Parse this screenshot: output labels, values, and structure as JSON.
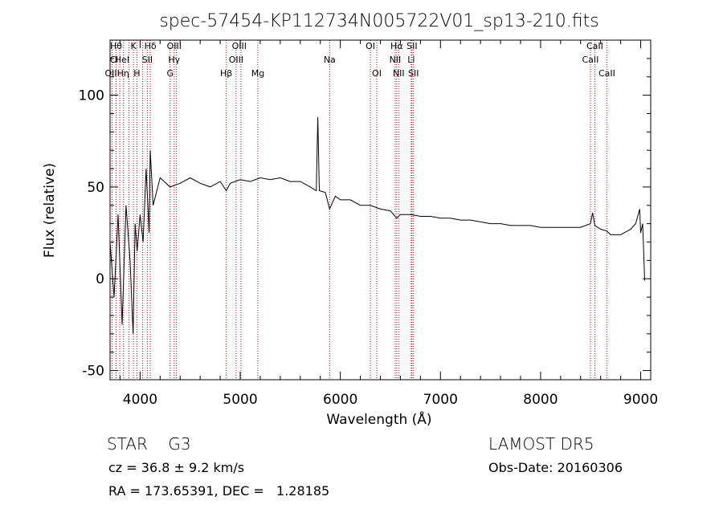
{
  "chart_data": {
    "type": "line",
    "title": "spec-57454-KP112734N005722V01_sp13-210.fits",
    "xlabel": "Wavelength (Å)",
    "ylabel": "Flux (relative)",
    "xlim": [
      3700,
      9100
    ],
    "ylim": [
      -55,
      130
    ],
    "xticks": [
      4000,
      5000,
      6000,
      7000,
      8000,
      9000
    ],
    "yticks": [
      -50,
      0,
      50,
      100
    ],
    "grid": false,
    "series": [
      {
        "color": "#000000",
        "x": [
          3700,
          3740,
          3780,
          3820,
          3860,
          3900,
          3930,
          3950,
          3970,
          4000,
          4030,
          4060,
          4090,
          4101,
          4130,
          4200,
          4300,
          4400,
          4500,
          4600,
          4700,
          4800,
          4861,
          4900,
          5000,
          5100,
          5200,
          5300,
          5400,
          5500,
          5600,
          5700,
          5760,
          5775,
          5790,
          5850,
          5893,
          5950,
          6000,
          6100,
          6200,
          6300,
          6400,
          6500,
          6563,
          6600,
          6700,
          6800,
          6900,
          7000,
          7100,
          7200,
          7300,
          7400,
          7500,
          7600,
          7700,
          7800,
          7900,
          8000,
          8100,
          8200,
          8300,
          8400,
          8498,
          8520,
          8542,
          8600,
          8662,
          8700,
          8800,
          8900,
          8950,
          8990,
          9000,
          9020,
          9040
        ],
        "values": [
          20,
          -10,
          35,
          -25,
          40,
          10,
          -30,
          30,
          15,
          35,
          20,
          60,
          25,
          70,
          40,
          55,
          50,
          52,
          55,
          52,
          50,
          53,
          48,
          52,
          54,
          53,
          55,
          54,
          55,
          53,
          53,
          50,
          48,
          88,
          48,
          47,
          38,
          45,
          43,
          43,
          40,
          40,
          38,
          37,
          33,
          35,
          35,
          34,
          34,
          33,
          33,
          32,
          32,
          31,
          30,
          30,
          29,
          29,
          29,
          28,
          28,
          28,
          28,
          28,
          30,
          36,
          29,
          27,
          26,
          24,
          24,
          27,
          30,
          38,
          25,
          30,
          -1
        ]
      }
    ],
    "lines": [
      {
        "x": 3720,
        "color": "#cc0000"
      },
      {
        "x": 3760,
        "color": "#cc0000"
      },
      {
        "x": 3797,
        "color": "#cc0000"
      },
      {
        "x": 3835,
        "color": "#cc0000"
      },
      {
        "x": 3889,
        "color": "#cc0000"
      },
      {
        "x": 3934,
        "color": "#cc0000"
      },
      {
        "x": 3968,
        "color": "#cc0000"
      },
      {
        "x": 4026,
        "color": "#cc0000"
      },
      {
        "x": 4072,
        "color": "#cc0000"
      },
      {
        "x": 4102,
        "color": "#cc0000"
      },
      {
        "x": 4300,
        "color": "#cc0000"
      },
      {
        "x": 4340,
        "color": "#cc0000"
      },
      {
        "x": 4363,
        "color": "#cc0000"
      },
      {
        "x": 4861,
        "color": "#cc0000"
      },
      {
        "x": 4959,
        "color": "#cc0000"
      },
      {
        "x": 5007,
        "color": "#cc0000"
      },
      {
        "x": 5176,
        "color": "#cc0000"
      },
      {
        "x": 5893,
        "color": "#cc0000"
      },
      {
        "x": 6300,
        "color": "#cc0000"
      },
      {
        "x": 6364,
        "color": "#cc0000"
      },
      {
        "x": 6548,
        "color": "#cc0000"
      },
      {
        "x": 6563,
        "color": "#cc0000"
      },
      {
        "x": 6583,
        "color": "#cc0000"
      },
      {
        "x": 6708,
        "color": "#cc0000"
      },
      {
        "x": 6716,
        "color": "#cc0000"
      },
      {
        "x": 6731,
        "color": "#cc0000"
      },
      {
        "x": 8498,
        "color": "#cc0000"
      },
      {
        "x": 8542,
        "color": "#cc0000"
      },
      {
        "x": 8662,
        "color": "#cc0000"
      }
    ],
    "annotations": [
      {
        "x": 3760,
        "row": 0,
        "text": "Hθ"
      },
      {
        "x": 3820,
        "row": 0,
        "text": ""
      },
      {
        "x": 3934,
        "row": 0,
        "text": "K"
      },
      {
        "x": 4102,
        "row": 0,
        "text": "Hδ"
      },
      {
        "x": 4340,
        "row": 0,
        "text": "OIII"
      },
      {
        "x": 4990,
        "row": 0,
        "text": "OIII"
      },
      {
        "x": 6300,
        "row": 0,
        "text": "OI"
      },
      {
        "x": 6563,
        "row": 0,
        "text": "Hα"
      },
      {
        "x": 6716,
        "row": 0,
        "text": "SII"
      },
      {
        "x": 8542,
        "row": 0,
        "text": "CaII"
      },
      {
        "x": 3740,
        "row": 1,
        "text": "Cl"
      },
      {
        "x": 3820,
        "row": 1,
        "text": "HeI"
      },
      {
        "x": 4072,
        "row": 1,
        "text": "SII"
      },
      {
        "x": 4340,
        "row": 1,
        "text": "Hγ"
      },
      {
        "x": 4959,
        "row": 1,
        "text": "OIII"
      },
      {
        "x": 5893,
        "row": 1,
        "text": "Na"
      },
      {
        "x": 6548,
        "row": 1,
        "text": "NII"
      },
      {
        "x": 6708,
        "row": 1,
        "text": "Li"
      },
      {
        "x": 8498,
        "row": 1,
        "text": "CaII"
      },
      {
        "x": 3770,
        "row": 2,
        "text": "OIIHη"
      },
      {
        "x": 3968,
        "row": 2,
        "text": "H"
      },
      {
        "x": 4300,
        "row": 2,
        "text": "G"
      },
      {
        "x": 4861,
        "row": 2,
        "text": "Hβ"
      },
      {
        "x": 5176,
        "row": 2,
        "text": "Mg"
      },
      {
        "x": 6364,
        "row": 2,
        "text": "OI"
      },
      {
        "x": 6583,
        "row": 2,
        "text": "NII"
      },
      {
        "x": 6731,
        "row": 2,
        "text": "SII"
      },
      {
        "x": 8662,
        "row": 2,
        "text": "CaII"
      }
    ]
  },
  "info": {
    "class_line": "STAR    G3",
    "survey": "LAMOST DR5",
    "redshift": "cz = 36.8 ± 9.2 km/s",
    "obs_date": "Obs-Date: 20160306",
    "coords": "RA = 173.65391, DEC =   1.28185"
  }
}
